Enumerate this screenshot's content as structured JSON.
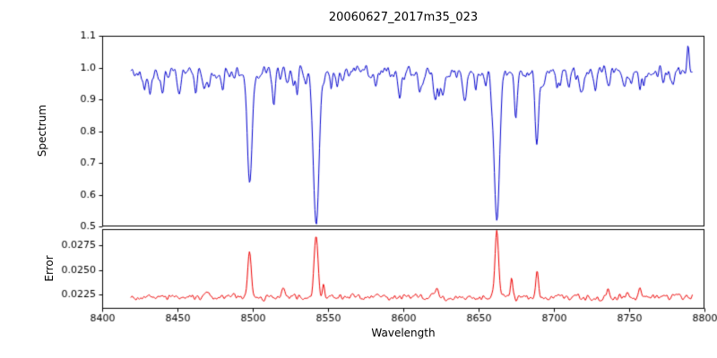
{
  "figure": {
    "title": "20060627_2017m35_023",
    "xlabel": "Wavelength",
    "ylabel_top": "Spectrum",
    "ylabel_bottom": "Error",
    "background_color": "#ffffff",
    "axes_color": "#000000"
  },
  "chart_data": [
    {
      "type": "line",
      "panel": "spectrum",
      "title": "20060627_2017m35_023",
      "ylabel": "Spectrum",
      "color": "#0000cd",
      "xlim": [
        8400,
        8800
      ],
      "ylim": [
        0.5,
        1.1
      ],
      "yticks": [
        0.5,
        0.6,
        0.7,
        0.8,
        0.9,
        1.0,
        1.1
      ],
      "ytick_labels": [
        "0.5",
        "0.6",
        "0.7",
        "0.8",
        "0.9",
        "1.0",
        "1.1"
      ],
      "x_data_range": [
        8419,
        8792
      ],
      "n_points": 730,
      "continuum": 0.985,
      "noise_amplitude": 0.022,
      "seed": 42,
      "weak_line_forest": {
        "count": 40,
        "seed": 7,
        "depth_range": [
          0.01,
          0.05
        ],
        "sigma_range": [
          0.5,
          1.2
        ]
      },
      "absorption_lines": [
        {
          "center": 8432.0,
          "depth": 0.05,
          "sigma": 0.9
        },
        {
          "center": 8440.0,
          "depth": 0.06,
          "sigma": 1.0
        },
        {
          "center": 8451.0,
          "depth": 0.04,
          "sigma": 0.8
        },
        {
          "center": 8462.0,
          "depth": 0.04,
          "sigma": 0.8
        },
        {
          "center": 8468.0,
          "depth": 0.06,
          "sigma": 0.9
        },
        {
          "center": 8480.0,
          "depth": 0.05,
          "sigma": 0.9
        },
        {
          "center": 8498.0,
          "depth": 0.31,
          "sigma": 1.6
        },
        {
          "center": 8514.0,
          "depth": 0.1,
          "sigma": 1.0
        },
        {
          "center": 8527.0,
          "depth": 0.05,
          "sigma": 0.8
        },
        {
          "center": 8542.1,
          "depth": 0.47,
          "sigma": 1.9
        },
        {
          "center": 8556.0,
          "depth": 0.04,
          "sigma": 0.8
        },
        {
          "center": 8582.0,
          "depth": 0.05,
          "sigma": 0.9
        },
        {
          "center": 8598.0,
          "depth": 0.07,
          "sigma": 1.0
        },
        {
          "center": 8611.0,
          "depth": 0.05,
          "sigma": 0.9
        },
        {
          "center": 8621.0,
          "depth": 0.08,
          "sigma": 1.0
        },
        {
          "center": 8648.0,
          "depth": 0.05,
          "sigma": 0.9
        },
        {
          "center": 8662.1,
          "depth": 0.46,
          "sigma": 1.8
        },
        {
          "center": 8674.8,
          "depth": 0.1,
          "sigma": 1.0
        },
        {
          "center": 8688.6,
          "depth": 0.24,
          "sigma": 1.1
        },
        {
          "center": 8702.0,
          "depth": 0.04,
          "sigma": 0.8
        },
        {
          "center": 8710.0,
          "depth": 0.05,
          "sigma": 0.9
        },
        {
          "center": 8718.0,
          "depth": 0.04,
          "sigma": 0.8
        },
        {
          "center": 8736.0,
          "depth": 0.05,
          "sigma": 0.9
        },
        {
          "center": 8747.0,
          "depth": 0.04,
          "sigma": 0.8
        },
        {
          "center": 8757.0,
          "depth": 0.04,
          "sigma": 0.8
        },
        {
          "center": 8773.0,
          "depth": 0.04,
          "sigma": 0.8
        }
      ],
      "peaks": [
        {
          "center": 8789.0,
          "amp": 0.075,
          "sigma": 0.7
        }
      ]
    },
    {
      "type": "line",
      "panel": "error",
      "ylabel": "Error",
      "xlabel": "Wavelength",
      "color": "#ee0000",
      "xlim": [
        8400,
        8800
      ],
      "ylim": [
        0.021,
        0.0292
      ],
      "yticks": [
        0.0225,
        0.025,
        0.0275
      ],
      "ytick_labels": [
        "0.0225",
        "0.0250",
        "0.0275"
      ],
      "xticks": [
        8400,
        8450,
        8500,
        8550,
        8600,
        8650,
        8700,
        8750,
        8800
      ],
      "xtick_labels": [
        "8400",
        "8450",
        "8500",
        "8550",
        "8600",
        "8650",
        "8700",
        "8750",
        "8800"
      ],
      "x_data_range": [
        8419,
        8792
      ],
      "n_points": 730,
      "baseline": 0.0222,
      "noise_amplitude": 0.00035,
      "seed": 99,
      "absorption_lines": [],
      "peaks": [
        {
          "center": 8470.0,
          "amp": 0.0006,
          "sigma": 0.8
        },
        {
          "center": 8498.0,
          "amp": 0.0045,
          "sigma": 1.2
        },
        {
          "center": 8520.0,
          "amp": 0.0008,
          "sigma": 1.0
        },
        {
          "center": 8542.1,
          "amp": 0.0064,
          "sigma": 1.3
        },
        {
          "center": 8547.0,
          "amp": 0.0014,
          "sigma": 0.7
        },
        {
          "center": 8622.0,
          "amp": 0.001,
          "sigma": 0.8
        },
        {
          "center": 8662.1,
          "amp": 0.0066,
          "sigma": 1.2
        },
        {
          "center": 8672.0,
          "amp": 0.0018,
          "sigma": 0.7
        },
        {
          "center": 8689.0,
          "amp": 0.0028,
          "sigma": 0.9
        },
        {
          "center": 8736.0,
          "amp": 0.0007,
          "sigma": 0.8
        },
        {
          "center": 8757.0,
          "amp": 0.0007,
          "sigma": 0.7
        }
      ]
    }
  ]
}
